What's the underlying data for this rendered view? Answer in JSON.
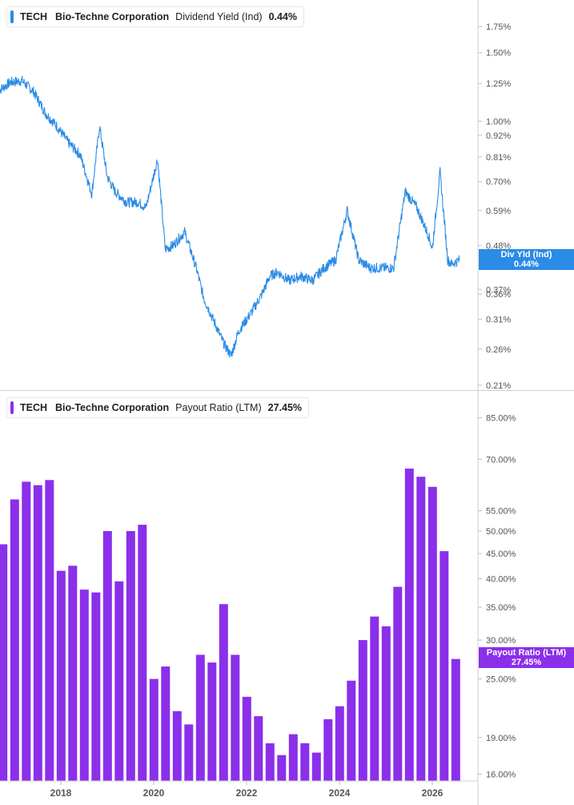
{
  "chart_data": [
    {
      "type": "line",
      "ticker": "TECH",
      "company": "Bio-Techne Corporation",
      "metric": "Dividend Yield (Ind)",
      "current_value": "0.44%",
      "tag": {
        "line1": "Div Yld (Ind)",
        "line2": "0.44%"
      },
      "color": "#2b8be6",
      "scale": "log",
      "ylim": [
        0.205,
        2.0
      ],
      "y_ticks": [
        {
          "value": 1.75,
          "label": "1.75%"
        },
        {
          "value": 1.5,
          "label": "1.50%"
        },
        {
          "value": 1.25,
          "label": "1.25%"
        },
        {
          "value": 1.0,
          "label": "1.00%"
        },
        {
          "value": 0.92,
          "label": "0.92%"
        },
        {
          "value": 0.81,
          "label": "0.81%"
        },
        {
          "value": 0.7,
          "label": "0.70%"
        },
        {
          "value": 0.59,
          "label": "0.59%"
        },
        {
          "value": 0.48,
          "label": "0.48%"
        },
        {
          "value": 0.37,
          "label": "0.37%"
        },
        {
          "value": 0.36,
          "label": "0.36%"
        },
        {
          "value": 0.31,
          "label": "0.31%"
        },
        {
          "value": 0.26,
          "label": "0.26%"
        },
        {
          "value": 0.21,
          "label": "0.21%"
        }
      ],
      "series": [
        {
          "x": [
            "2016-09",
            "2016-12",
            "2017-03",
            "2017-06",
            "2017-09",
            "2017-12",
            "2018-03",
            "2018-06",
            "2018-09",
            "2018-11",
            "2019-01",
            "2019-03",
            "2019-06",
            "2019-09",
            "2019-11",
            "2020-02",
            "2020-04",
            "2020-06",
            "2020-09",
            "2020-12",
            "2021-02",
            "2021-05",
            "2021-07",
            "2021-09",
            "2021-11",
            "2022-02",
            "2022-05",
            "2022-07",
            "2022-09",
            "2022-12",
            "2023-03",
            "2023-06",
            "2023-09",
            "2023-12",
            "2024-03",
            "2024-06",
            "2024-09",
            "2024-12",
            "2025-03",
            "2025-06",
            "2025-09",
            "2025-12",
            "2026-01",
            "2026-03",
            "2026-05",
            "2026-06",
            "2026-08"
          ],
          "values": [
            1.2,
            1.26,
            1.27,
            1.19,
            1.05,
            0.97,
            0.88,
            0.82,
            0.65,
            0.97,
            0.72,
            0.66,
            0.62,
            0.62,
            0.6,
            0.8,
            0.47,
            0.48,
            0.52,
            0.42,
            0.35,
            0.3,
            0.27,
            0.25,
            0.29,
            0.32,
            0.36,
            0.4,
            0.41,
            0.39,
            0.4,
            0.39,
            0.42,
            0.44,
            0.59,
            0.44,
            0.42,
            0.42,
            0.42,
            0.66,
            0.6,
            0.51,
            0.47,
            0.74,
            0.44,
            0.43,
            0.44
          ]
        }
      ]
    },
    {
      "type": "bar",
      "ticker": "TECH",
      "company": "Bio-Techne Corporation",
      "metric": "Payout Ratio (LTM)",
      "current_value": "27.45%",
      "tag": {
        "line1": "Payout Ratio (LTM)",
        "line2": "27.45%"
      },
      "color": "#8b2fea",
      "scale": "log",
      "ylim": [
        15.5,
        95
      ],
      "y_ticks": [
        {
          "value": 85,
          "label": "85.00%"
        },
        {
          "value": 70,
          "label": "70.00%"
        },
        {
          "value": 55,
          "label": "55.00%"
        },
        {
          "value": 50,
          "label": "50.00%"
        },
        {
          "value": 45,
          "label": "45.00%"
        },
        {
          "value": 40,
          "label": "40.00%"
        },
        {
          "value": 35,
          "label": "35.00%"
        },
        {
          "value": 30,
          "label": "30.00%"
        },
        {
          "value": 25,
          "label": "25.00%"
        },
        {
          "value": 19,
          "label": "19.00%"
        },
        {
          "value": 16,
          "label": "16.00%"
        }
      ],
      "categories": [
        "2016Q4",
        "2017Q1",
        "2017Q2",
        "2017Q3",
        "2017Q4",
        "2018Q1",
        "2018Q2",
        "2018Q3",
        "2018Q4",
        "2019Q1",
        "2019Q2",
        "2019Q3",
        "2019Q4",
        "2020Q1",
        "2020Q2",
        "2020Q3",
        "2020Q4",
        "2021Q1",
        "2021Q2",
        "2021Q3",
        "2021Q4",
        "2022Q1",
        "2022Q2",
        "2022Q3",
        "2022Q4",
        "2023Q1",
        "2023Q2",
        "2023Q3",
        "2023Q4",
        "2024Q1",
        "2024Q2",
        "2024Q3",
        "2024Q4",
        "2025Q1",
        "2025Q2",
        "2025Q3",
        "2025Q4",
        "2026Q1",
        "2026Q2",
        "2026Q3"
      ],
      "values": [
        47,
        58,
        63,
        62,
        63.5,
        41.5,
        42.5,
        38,
        37.5,
        50,
        39.5,
        50,
        51.5,
        25,
        26.5,
        21.5,
        20.2,
        28,
        27,
        35.5,
        28,
        23,
        21,
        18.5,
        17.5,
        19.3,
        18.5,
        17.7,
        20.7,
        22,
        24.8,
        30,
        33.5,
        32,
        38.5,
        67,
        64.5,
        61.5,
        45.5,
        27.45
      ]
    }
  ],
  "x_axis": {
    "ticks": [
      {
        "x": "2018-01",
        "label": "2018"
      },
      {
        "x": "2020-01",
        "label": "2020"
      },
      {
        "x": "2022-01",
        "label": "2022"
      },
      {
        "x": "2024-01",
        "label": "2024"
      },
      {
        "x": "2026-01",
        "label": "2026"
      }
    ]
  }
}
